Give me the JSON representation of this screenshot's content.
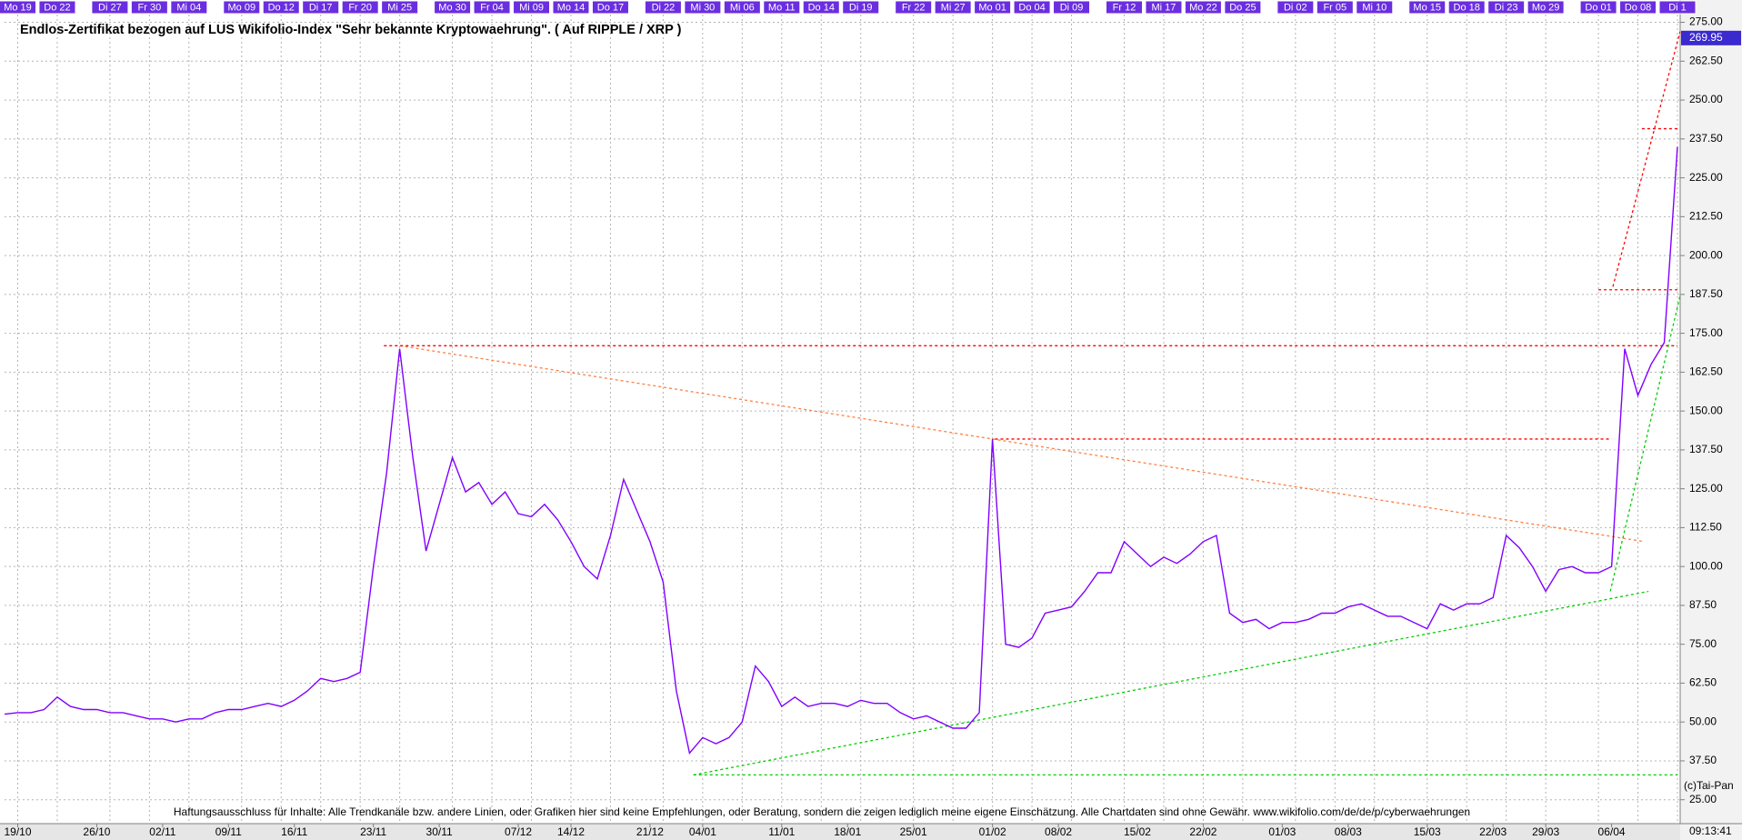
{
  "chart_data": {
    "type": "line",
    "title": "Endlos-Zertifikat bezogen auf LUS Wikifolio-Index \"Sehr bekannte Kryptowaehrung\". ( Auf RIPPLE / XRP )",
    "footer": "Haftungsausschluss für Inhalte: Alle Trendkanäle bzw. andere Linien, oder Grafiken hier sind keine Empfehlungen, oder Beratung, sondern die zeigen lediglich meine eigene Einschätzung. Alle Chartdaten sind ohne Gewähr.  www.wikifolio.com/de/de/p/cyberwaehrungen",
    "copyright": "(c)Tai-Pan",
    "time": "09:13:41",
    "categories": [
      null,
      "19/10",
      null,
      null,
      null,
      null,
      null,
      "26/10",
      null,
      null,
      null,
      null,
      "02/11",
      null,
      null,
      null,
      null,
      "09/11",
      null,
      null,
      null,
      null,
      "16/11",
      null,
      null,
      null,
      null,
      null,
      "23/11",
      null,
      null,
      null,
      null,
      "30/11",
      null,
      null,
      null,
      null,
      null,
      "07/12",
      null,
      null,
      null,
      "14/12",
      null,
      null,
      null,
      null,
      null,
      "21/12",
      null,
      null,
      null,
      "04/01",
      null,
      null,
      null,
      null,
      null,
      "11/01",
      null,
      null,
      null,
      null,
      "18/01",
      null,
      null,
      null,
      null,
      "25/01",
      null,
      null,
      null,
      null,
      null,
      "01/02",
      null,
      null,
      null,
      null,
      "08/02",
      null,
      null,
      null,
      null,
      null,
      "15/02",
      null,
      null,
      null,
      null,
      "22/02",
      null,
      null,
      null,
      null,
      null,
      "01/03",
      null,
      null,
      null,
      null,
      "08/03",
      null,
      null,
      null,
      null,
      null,
      "15/03",
      null,
      null,
      null,
      null,
      "22/03",
      null,
      null,
      null,
      "29/03",
      null,
      null,
      null,
      null,
      "06/04",
      null,
      null,
      null,
      null,
      null
    ],
    "top_labels": [
      null,
      "Mo 19",
      null,
      null,
      "Do 22",
      null,
      null,
      null,
      "Di 27",
      null,
      null,
      "Fr 30",
      null,
      null,
      "Mi 04",
      null,
      null,
      null,
      "Mo 09",
      null,
      null,
      "Do 12",
      null,
      null,
      "Di 17",
      null,
      null,
      "Fr 20",
      null,
      null,
      "Mi 25",
      null,
      null,
      null,
      "Mo 30",
      null,
      null,
      "Fr 04",
      null,
      null,
      "Mi 09",
      null,
      null,
      "Mo 14",
      null,
      null,
      "Do 17",
      null,
      null,
      null,
      "Di 22",
      null,
      null,
      "Mi 30",
      null,
      null,
      "Mi 06",
      null,
      null,
      "Mo 11",
      null,
      null,
      "Do 14",
      null,
      null,
      "Di 19",
      null,
      null,
      null,
      "Fr 22",
      null,
      null,
      "Mi 27",
      null,
      null,
      "Mo 01",
      null,
      null,
      "Do 04",
      null,
      null,
      "Di 09",
      null,
      null,
      null,
      "Fr 12",
      null,
      null,
      "Mi 17",
      null,
      null,
      "Mo 22",
      null,
      null,
      "Do 25",
      null,
      null,
      null,
      "Di 02",
      null,
      null,
      "Fr 05",
      null,
      null,
      "Mi 10",
      null,
      null,
      null,
      "Mo 15",
      null,
      null,
      "Do 18",
      null,
      null,
      "Di 23",
      null,
      null,
      "Mo 29",
      null,
      null,
      null,
      "Do 01",
      null,
      null,
      "Do 08",
      null,
      null,
      "Di 1"
    ],
    "series": [
      {
        "color": "#8000ff",
        "values": [
          52.5,
          53,
          53,
          54,
          58,
          55,
          54,
          54,
          53,
          53,
          52,
          51,
          51,
          50,
          51,
          51,
          53,
          54,
          54,
          55,
          56,
          55,
          57,
          60,
          64,
          63,
          64,
          66,
          100,
          130,
          170,
          135,
          105,
          120,
          135,
          124,
          127,
          120,
          124,
          117,
          116,
          120,
          115,
          108,
          100,
          96,
          110,
          128,
          118,
          108,
          95,
          60,
          40,
          45,
          43,
          45,
          50,
          68,
          63,
          55,
          58,
          55,
          56,
          56,
          55,
          57,
          56,
          56,
          53,
          51,
          52,
          50,
          48,
          48,
          53,
          141,
          75,
          74,
          77,
          85,
          86,
          87,
          92,
          98,
          98,
          108,
          104,
          100,
          103,
          101,
          104,
          108,
          110,
          85,
          82,
          83,
          80,
          82,
          82,
          83,
          85,
          85,
          87,
          88,
          86,
          84,
          84,
          82,
          80,
          88,
          86,
          88,
          88,
          90,
          110,
          106,
          100,
          92,
          99,
          100,
          98,
          98,
          100,
          170,
          155,
          165,
          172,
          235
        ]
      }
    ],
    "last_value": 269.95,
    "trendlines": [
      {
        "color": "#ff8040",
        "x": [
          30,
          124.5
        ],
        "values": [
          171,
          108
        ]
      },
      {
        "color": "#ff0000",
        "x": [
          28.8,
          127
        ],
        "values": [
          171,
          171
        ]
      },
      {
        "color": "#ff0000",
        "x": [
          75.2,
          122
        ],
        "values": [
          141,
          141
        ]
      },
      {
        "color": "#ff0000",
        "x": [
          121,
          127
        ],
        "values": [
          189,
          189
        ]
      },
      {
        "color": "#ff0000",
        "x": [
          124.3,
          127
        ],
        "values": [
          240.8,
          240.8
        ]
      },
      {
        "color": "#ff0000",
        "x": [
          122.1,
          127.2
        ],
        "values": [
          190,
          272
        ]
      },
      {
        "color": "#00cc00",
        "x": [
          52.3,
          127
        ],
        "values": [
          33,
          33
        ]
      },
      {
        "color": "#00cc00",
        "x": [
          52.3,
          124.8
        ],
        "values": [
          33,
          92
        ]
      },
      {
        "color": "#00cc00",
        "x": [
          121.9,
          127.2
        ],
        "values": [
          92,
          187
        ]
      }
    ],
    "ylim": [
      17.9,
      277.5
    ],
    "yticks": [
      {
        "value": 25,
        "label": "25.00"
      },
      {
        "value": 37.5,
        "label": "37.50"
      },
      {
        "value": 50,
        "label": "50.00"
      },
      {
        "value": 62.5,
        "label": "62.50"
      },
      {
        "value": 75,
        "label": "75.00"
      },
      {
        "value": 87.5,
        "label": "87.50"
      },
      {
        "value": 100,
        "label": "100.00"
      },
      {
        "value": 112.5,
        "label": "112.50"
      },
      {
        "value": 125,
        "label": "125.00"
      },
      {
        "value": 137.5,
        "label": "137.50"
      },
      {
        "value": 150,
        "label": "150.00"
      },
      {
        "value": 162.5,
        "label": "162.50"
      },
      {
        "value": 175,
        "label": "175.00"
      },
      {
        "value": 187.5,
        "label": "187.50"
      },
      {
        "value": 200,
        "label": "200.00"
      },
      {
        "value": 212.5,
        "label": "212.50"
      },
      {
        "value": 225,
        "label": "225.00"
      },
      {
        "value": 237.5,
        "label": "237.50"
      },
      {
        "value": 250,
        "label": "250.00"
      },
      {
        "value": 262.5,
        "label": "262.50"
      },
      {
        "value": 275,
        "label": "275.00"
      }
    ],
    "grid": true
  }
}
